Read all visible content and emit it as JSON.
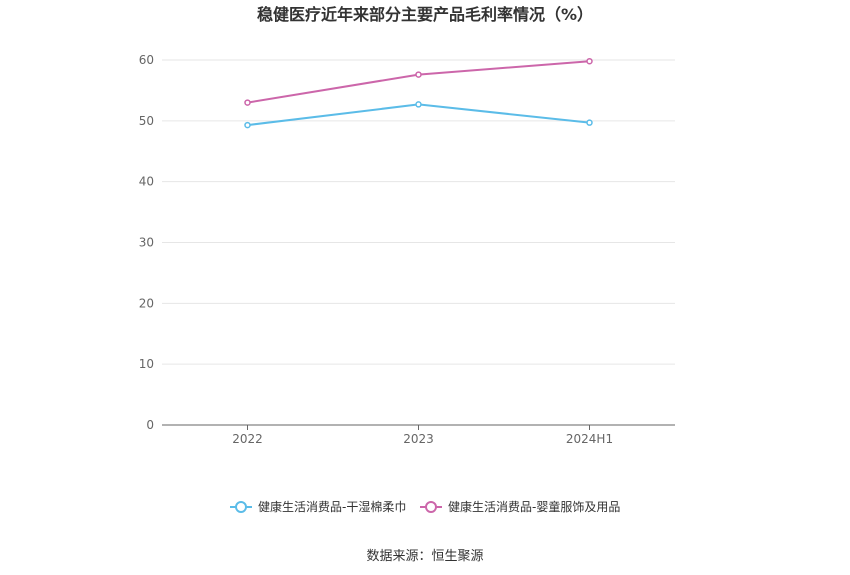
{
  "chart_data": {
    "type": "line",
    "title": "稳健医疗近年来部分主要产品毛利率情况（%）",
    "xlabel": "",
    "ylabel": "",
    "categories": [
      "2022",
      "2023",
      "2024H1"
    ],
    "ylim": [
      0,
      60
    ],
    "yticks": [
      "0",
      "10",
      "20",
      "30",
      "40",
      "50",
      "60"
    ],
    "grid": true,
    "legend_position": "bottom",
    "series": [
      {
        "name": "健康生活消费品-干湿棉柔巾",
        "values": [
          49.3,
          52.7,
          49.7
        ],
        "color": "#5bbce8"
      },
      {
        "name": "健康生活消费品-婴童服饰及用品",
        "values": [
          53.0,
          57.6,
          59.8
        ],
        "color": "#cc66aa"
      }
    ],
    "source": "数据来源：恒生聚源"
  }
}
